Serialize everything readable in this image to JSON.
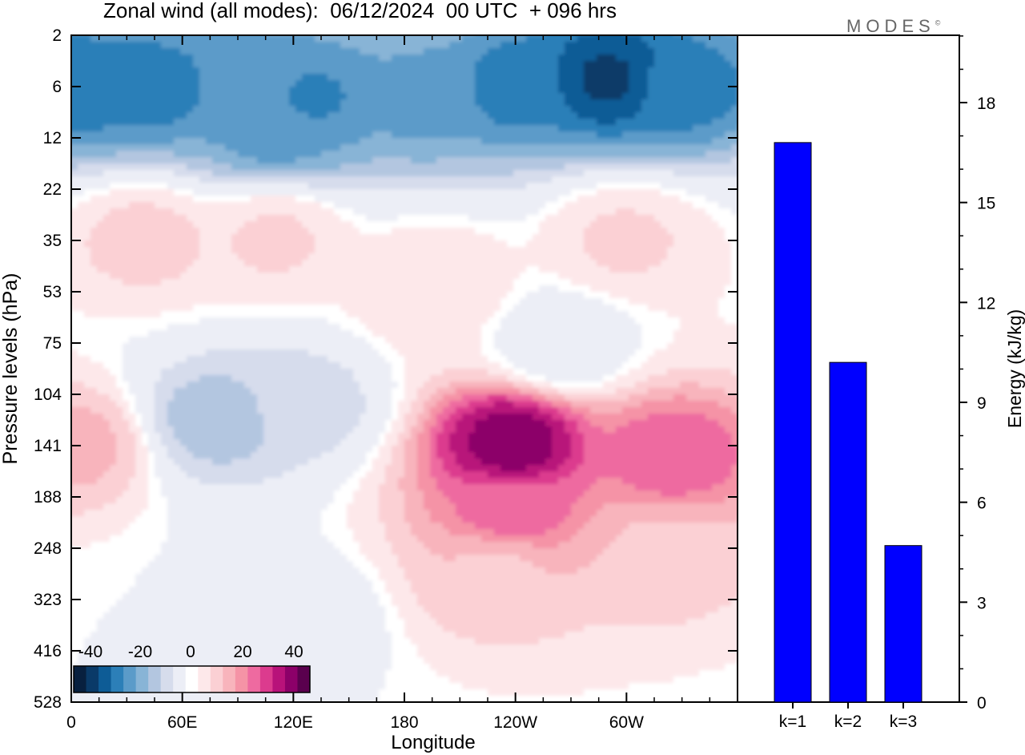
{
  "header": {
    "title": "Zonal wind (all modes):  06/12/2024  00 UTC  + 096 hrs",
    "logo_text": "MODES",
    "logo_mark": "©"
  },
  "chart_data": [
    {
      "type": "heatmap",
      "title": "Zonal wind (all modes):  06/12/2024  00 UTC  + 096 hrs",
      "xlabel": "Longitude",
      "ylabel": "Pressure levels (hPa)",
      "x_ticks": [
        "0",
        "60E",
        "120E",
        "180",
        "120W",
        "60W"
      ],
      "y_ticks": [
        "2",
        "6",
        "12",
        "22",
        "35",
        "53",
        "75",
        "104",
        "141",
        "188",
        "248",
        "323",
        "416",
        "528"
      ],
      "colorbar": {
        "labels": [
          "-40",
          "-20",
          "0",
          "20",
          "40"
        ],
        "colors": [
          "#08203f",
          "#0a3a68",
          "#0e5c96",
          "#2c7fb8",
          "#5b9bc9",
          "#88b4d6",
          "#b3c6e0",
          "#d6dcec",
          "#eceef6",
          "#ffffff",
          "#fde8ea",
          "#fbd0d4",
          "#f8b4bc",
          "#f593a6",
          "#ee6aa0",
          "#dc3b8e",
          "#b8127a",
          "#8c0069",
          "#5a004e"
        ]
      },
      "fields": [
        {
          "lon": 0,
          "p": 6,
          "u": -32
        },
        {
          "lon": 45,
          "p": 6,
          "u": -30
        },
        {
          "lon": 95,
          "p": 6,
          "u": -26
        },
        {
          "lon": 130,
          "p": 7,
          "u": -28
        },
        {
          "lon": 190,
          "p": 7,
          "u": -24
        },
        {
          "lon": 240,
          "p": 6,
          "u": -30
        },
        {
          "lon": 290,
          "p": 5,
          "u": -38
        },
        {
          "lon": 330,
          "p": 6,
          "u": -30
        },
        {
          "lon": 110,
          "p": 10,
          "u": -25
        },
        {
          "lon": 40,
          "p": 35,
          "u": 9
        },
        {
          "lon": 110,
          "p": 35,
          "u": 8
        },
        {
          "lon": 300,
          "p": 35,
          "u": 8
        },
        {
          "lon": 195,
          "p": 50,
          "u": 7
        },
        {
          "lon": 80,
          "p": 120,
          "u": -15
        },
        {
          "lon": 125,
          "p": 110,
          "u": -10
        },
        {
          "lon": 265,
          "p": 75,
          "u": -4
        },
        {
          "lon": 120,
          "p": 350,
          "u": -5
        },
        {
          "lon": 238,
          "p": 140,
          "u": 40
        },
        {
          "lon": 238,
          "p": 200,
          "u": 25
        },
        {
          "lon": 230,
          "p": 280,
          "u": 12
        },
        {
          "lon": 325,
          "p": 150,
          "u": 26
        },
        {
          "lon": 320,
          "p": 250,
          "u": 12
        },
        {
          "lon": 0,
          "p": 141,
          "u": 14
        }
      ]
    },
    {
      "type": "bar",
      "categories": [
        "k=1",
        "k=2",
        "k=3"
      ],
      "values": [
        16.8,
        10.2,
        4.7
      ],
      "ylabel": "Energy (kJ/kg)",
      "ylim": [
        0,
        20
      ],
      "y_ticks": [
        "0",
        "3",
        "6",
        "9",
        "12",
        "15",
        "18"
      ],
      "bar_color": "#0000ff"
    }
  ]
}
